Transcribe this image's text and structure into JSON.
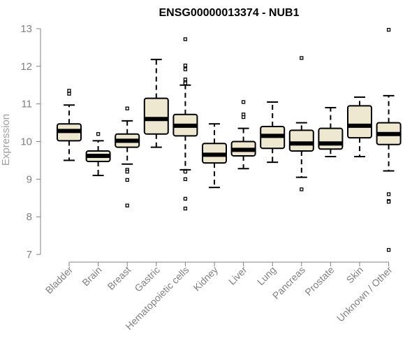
{
  "chart_data": {
    "type": "boxplot",
    "title": "ENSG00000013374 - NUB1",
    "ylabel": "Expression",
    "xlabel": "",
    "ylim": [
      7,
      13
    ],
    "yticks": [
      7,
      8,
      9,
      10,
      11,
      12,
      13
    ],
    "grid": false,
    "legend": "none",
    "box_fill": "#efe8d0",
    "box_stroke": "#000000",
    "categories": [
      "Bladder",
      "Brain",
      "Breast",
      "Gastric",
      "Hematopoietic cells",
      "Kidney",
      "Liver",
      "Lung",
      "Pancreas",
      "Prostate",
      "Skin",
      "Unknown / Other"
    ],
    "boxes": [
      {
        "category": "Bladder",
        "whisker_low": 9.5,
        "q1": 10.02,
        "median": 10.28,
        "q3": 10.47,
        "whisker_high": 10.97,
        "outliers": [
          11.27,
          11.35
        ]
      },
      {
        "category": "Brain",
        "whisker_low": 9.1,
        "q1": 9.47,
        "median": 9.62,
        "q3": 9.75,
        "whisker_high": 10.02,
        "outliers": [
          10.2
        ]
      },
      {
        "category": "Breast",
        "whisker_low": 9.4,
        "q1": 9.85,
        "median": 10.02,
        "q3": 10.2,
        "whisker_high": 10.55,
        "outliers": [
          10.88,
          9.25,
          9.2,
          8.98,
          8.3
        ]
      },
      {
        "category": "Gastric",
        "whisker_low": 9.85,
        "q1": 10.2,
        "median": 10.6,
        "q3": 11.15,
        "whisker_high": 12.18,
        "outliers": []
      },
      {
        "category": "Hematopoietic cells",
        "whisker_low": 9.25,
        "q1": 10.15,
        "median": 10.42,
        "q3": 10.72,
        "whisker_high": 11.5,
        "outliers": [
          12.72,
          12.02,
          11.92,
          11.65,
          11.58,
          11.55,
          9.22,
          9.2,
          9.0,
          8.48,
          8.22
        ]
      },
      {
        "category": "Kidney",
        "whisker_low": 8.78,
        "q1": 9.43,
        "median": 9.65,
        "q3": 9.95,
        "whisker_high": 10.47,
        "outliers": []
      },
      {
        "category": "Liver",
        "whisker_low": 9.28,
        "q1": 9.62,
        "median": 9.78,
        "q3": 10.0,
        "whisker_high": 10.35,
        "outliers": [
          11.05,
          10.72,
          10.65
        ]
      },
      {
        "category": "Lung",
        "whisker_low": 9.45,
        "q1": 9.82,
        "median": 10.15,
        "q3": 10.4,
        "whisker_high": 11.05,
        "outliers": []
      },
      {
        "category": "Pancreas",
        "whisker_low": 9.05,
        "q1": 9.75,
        "median": 9.95,
        "q3": 10.3,
        "whisker_high": 10.5,
        "outliers": [
          12.22,
          8.73
        ]
      },
      {
        "category": "Prostate",
        "whisker_low": 9.6,
        "q1": 9.8,
        "median": 9.95,
        "q3": 10.35,
        "whisker_high": 10.9,
        "outliers": []
      },
      {
        "category": "Skin",
        "whisker_low": 9.6,
        "q1": 10.1,
        "median": 10.42,
        "q3": 10.95,
        "whisker_high": 11.18,
        "outliers": []
      },
      {
        "category": "Unknown / Other",
        "whisker_low": 9.22,
        "q1": 9.92,
        "median": 10.2,
        "q3": 10.5,
        "whisker_high": 11.22,
        "outliers": [
          12.97,
          8.6,
          8.42,
          8.4,
          7.12
        ]
      }
    ]
  }
}
